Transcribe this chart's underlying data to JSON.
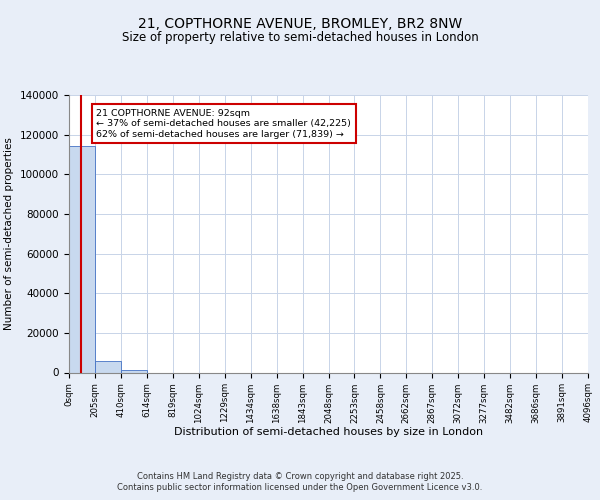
{
  "title_line1": "21, COPTHORNE AVENUE, BROMLEY, BR2 8NW",
  "title_line2": "Size of property relative to semi-detached houses in London",
  "xlabel": "Distribution of semi-detached houses by size in London",
  "ylabel": "Number of semi-detached properties",
  "annotation_title": "21 COPTHORNE AVENUE: 92sqm",
  "annotation_line2": "← 37% of semi-detached houses are smaller (42,225)",
  "annotation_line3": "62% of semi-detached houses are larger (71,839) →",
  "property_size": 92,
  "bar_counts": [
    114064,
    6000,
    1200,
    0,
    0,
    0,
    0,
    0,
    0,
    0,
    0,
    0,
    0,
    0,
    0,
    0,
    0,
    0,
    0,
    0
  ],
  "bin_edges": [
    0,
    205,
    410,
    614,
    819,
    1024,
    1229,
    1434,
    1638,
    1843,
    2048,
    2253,
    2458,
    2662,
    2867,
    3072,
    3277,
    3482,
    3686,
    3891,
    4096
  ],
  "bar_color": "#c8d9ef",
  "bar_edge_color": "#4472c4",
  "red_line_color": "#cc0000",
  "grid_color": "#c8d4e8",
  "background_color": "#e8eef8",
  "plot_bg_color": "#ffffff",
  "annotation_box_color": "#ffffff",
  "annotation_box_edge": "#cc0000",
  "footer_line1": "Contains HM Land Registry data © Crown copyright and database right 2025.",
  "footer_line2": "Contains public sector information licensed under the Open Government Licence v3.0.",
  "ylim": [
    0,
    140000
  ],
  "yticks": [
    0,
    20000,
    40000,
    60000,
    80000,
    100000,
    120000,
    140000
  ]
}
